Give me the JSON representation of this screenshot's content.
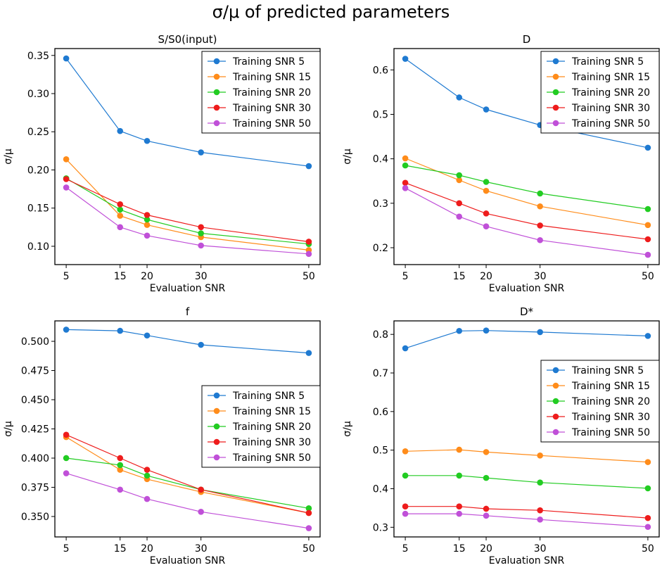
{
  "suptitle": "σ/μ of predicted parameters",
  "series_colors": [
    "#1f7ad1",
    "#ff8c1a",
    "#22cc22",
    "#ee1c1c",
    "#c050d8"
  ],
  "chart_data": [
    {
      "type": "line",
      "title": "S/S0(input)",
      "xlabel": "Evaluation SNR",
      "ylabel": "σ/μ",
      "x": [
        5,
        15,
        20,
        30,
        50
      ],
      "xticks": [
        "5",
        "15",
        "20",
        "30",
        "50"
      ],
      "xlim": [
        2.9,
        52.1
      ],
      "ylim": [
        0.076,
        0.359
      ],
      "yticks": [
        0.1,
        0.15,
        0.2,
        0.25,
        0.3,
        0.35
      ],
      "ytick_labels": [
        "0.10",
        "0.15",
        "0.20",
        "0.25",
        "0.30",
        "0.35"
      ],
      "legend": "upper right",
      "series": [
        {
          "name": "Training SNR 5",
          "values": [
            0.346,
            0.251,
            0.238,
            0.223,
            0.205
          ]
        },
        {
          "name": "Training SNR 15",
          "values": [
            0.214,
            0.14,
            0.128,
            0.112,
            0.095
          ]
        },
        {
          "name": "Training SNR 20",
          "values": [
            0.189,
            0.148,
            0.135,
            0.117,
            0.103
          ]
        },
        {
          "name": "Training SNR 30",
          "values": [
            0.188,
            0.155,
            0.141,
            0.125,
            0.106
          ]
        },
        {
          "name": "Training SNR 50",
          "values": [
            0.177,
            0.125,
            0.114,
            0.101,
            0.09
          ]
        }
      ]
    },
    {
      "type": "line",
      "title": "D",
      "xlabel": "Evaluation SNR",
      "ylabel": "σ/μ",
      "x": [
        5,
        15,
        20,
        30,
        50
      ],
      "xticks": [
        "5",
        "15",
        "20",
        "30",
        "50"
      ],
      "xlim": [
        2.9,
        52.1
      ],
      "ylim": [
        0.162,
        0.648
      ],
      "yticks": [
        0.2,
        0.3,
        0.4,
        0.5,
        0.6
      ],
      "ytick_labels": [
        "0.2",
        "0.3",
        "0.4",
        "0.5",
        "0.6"
      ],
      "legend": "upper right",
      "series": [
        {
          "name": "Training SNR 5",
          "values": [
            0.625,
            0.538,
            0.511,
            0.476,
            0.425
          ]
        },
        {
          "name": "Training SNR 15",
          "values": [
            0.401,
            0.352,
            0.328,
            0.293,
            0.251
          ]
        },
        {
          "name": "Training SNR 20",
          "values": [
            0.385,
            0.363,
            0.348,
            0.322,
            0.287
          ]
        },
        {
          "name": "Training SNR 30",
          "values": [
            0.346,
            0.3,
            0.277,
            0.25,
            0.219
          ]
        },
        {
          "name": "Training SNR 50",
          "values": [
            0.334,
            0.27,
            0.248,
            0.217,
            0.184
          ]
        }
      ]
    },
    {
      "type": "line",
      "title": "f",
      "xlabel": "Evaluation SNR",
      "ylabel": "σ/μ",
      "x": [
        5,
        15,
        20,
        30,
        50
      ],
      "xticks": [
        "5",
        "15",
        "20",
        "30",
        "50"
      ],
      "xlim": [
        2.9,
        52.1
      ],
      "ylim": [
        0.3325,
        0.5175
      ],
      "yticks": [
        0.35,
        0.375,
        0.4,
        0.425,
        0.45,
        0.475,
        0.5
      ],
      "ytick_labels": [
        "0.350",
        "0.375",
        "0.400",
        "0.425",
        "0.450",
        "0.475",
        "0.500"
      ],
      "legend": "center right",
      "series": [
        {
          "name": "Training SNR 5",
          "values": [
            0.51,
            0.509,
            0.505,
            0.497,
            0.49
          ]
        },
        {
          "name": "Training SNR 15",
          "values": [
            0.418,
            0.39,
            0.382,
            0.371,
            0.353
          ]
        },
        {
          "name": "Training SNR 20",
          "values": [
            0.4,
            0.394,
            0.385,
            0.373,
            0.357
          ]
        },
        {
          "name": "Training SNR 30",
          "values": [
            0.42,
            0.4,
            0.39,
            0.373,
            0.353
          ]
        },
        {
          "name": "Training SNR 50",
          "values": [
            0.387,
            0.373,
            0.365,
            0.354,
            0.34
          ]
        }
      ]
    },
    {
      "type": "line",
      "title": "D*",
      "xlabel": "Evaluation SNR",
      "ylabel": "σ/μ",
      "x": [
        5,
        15,
        20,
        30,
        50
      ],
      "xticks": [
        "5",
        "15",
        "20",
        "30",
        "50"
      ],
      "xlim": [
        2.9,
        52.1
      ],
      "ylim": [
        0.275,
        0.835
      ],
      "yticks": [
        0.3,
        0.4,
        0.5,
        0.6,
        0.7,
        0.8
      ],
      "ytick_labels": [
        "0.3",
        "0.4",
        "0.5",
        "0.6",
        "0.7",
        "0.8"
      ],
      "legend": "center right",
      "series": [
        {
          "name": "Training SNR 5",
          "values": [
            0.764,
            0.809,
            0.81,
            0.806,
            0.796
          ]
        },
        {
          "name": "Training SNR 15",
          "values": [
            0.497,
            0.501,
            0.495,
            0.486,
            0.469
          ]
        },
        {
          "name": "Training SNR 20",
          "values": [
            0.434,
            0.434,
            0.428,
            0.416,
            0.401
          ]
        },
        {
          "name": "Training SNR 30",
          "values": [
            0.354,
            0.354,
            0.348,
            0.344,
            0.324
          ]
        },
        {
          "name": "Training SNR 50",
          "values": [
            0.335,
            0.335,
            0.33,
            0.32,
            0.301
          ]
        }
      ]
    }
  ]
}
